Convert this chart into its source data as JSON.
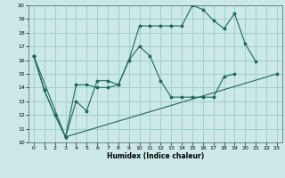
{
  "xlabel": "Humidex (Indice chaleur)",
  "bg_color": "#cce8e8",
  "grid_color": "#99cccc",
  "line_color": "#1a6b5a",
  "xlim": [
    -0.5,
    23.5
  ],
  "ylim": [
    10,
    20
  ],
  "xticks": [
    0,
    1,
    2,
    3,
    4,
    5,
    6,
    7,
    8,
    9,
    10,
    11,
    12,
    13,
    14,
    15,
    16,
    17,
    18,
    19,
    20,
    21,
    22,
    23
  ],
  "yticks": [
    10,
    11,
    12,
    13,
    14,
    15,
    16,
    17,
    18,
    19,
    20
  ],
  "line1_x": [
    0,
    1,
    2,
    3,
    4,
    5,
    6,
    7,
    8,
    9,
    10,
    11,
    12,
    13,
    14,
    15,
    16,
    17,
    18,
    19,
    20,
    21
  ],
  "line1_y": [
    16.3,
    13.8,
    12.0,
    10.4,
    14.2,
    14.2,
    14.0,
    14.0,
    14.2,
    16.0,
    18.5,
    18.5,
    18.5,
    18.5,
    18.5,
    20.0,
    19.7,
    18.9,
    18.3,
    19.4,
    17.2,
    15.9
  ],
  "line2_x": [
    0,
    1,
    2,
    3,
    4,
    5,
    6,
    7,
    8,
    9,
    10,
    11,
    12,
    13,
    14,
    15,
    16,
    17,
    18,
    19
  ],
  "line2_y": [
    16.3,
    13.8,
    12.0,
    10.4,
    13.0,
    12.3,
    14.5,
    14.5,
    14.2,
    16.0,
    17.0,
    16.3,
    14.5,
    13.3,
    13.3,
    13.3,
    13.3,
    13.3,
    14.8,
    15.0
  ],
  "line3_x": [
    0,
    3,
    23
  ],
  "line3_y": [
    16.3,
    10.4,
    15.0
  ]
}
